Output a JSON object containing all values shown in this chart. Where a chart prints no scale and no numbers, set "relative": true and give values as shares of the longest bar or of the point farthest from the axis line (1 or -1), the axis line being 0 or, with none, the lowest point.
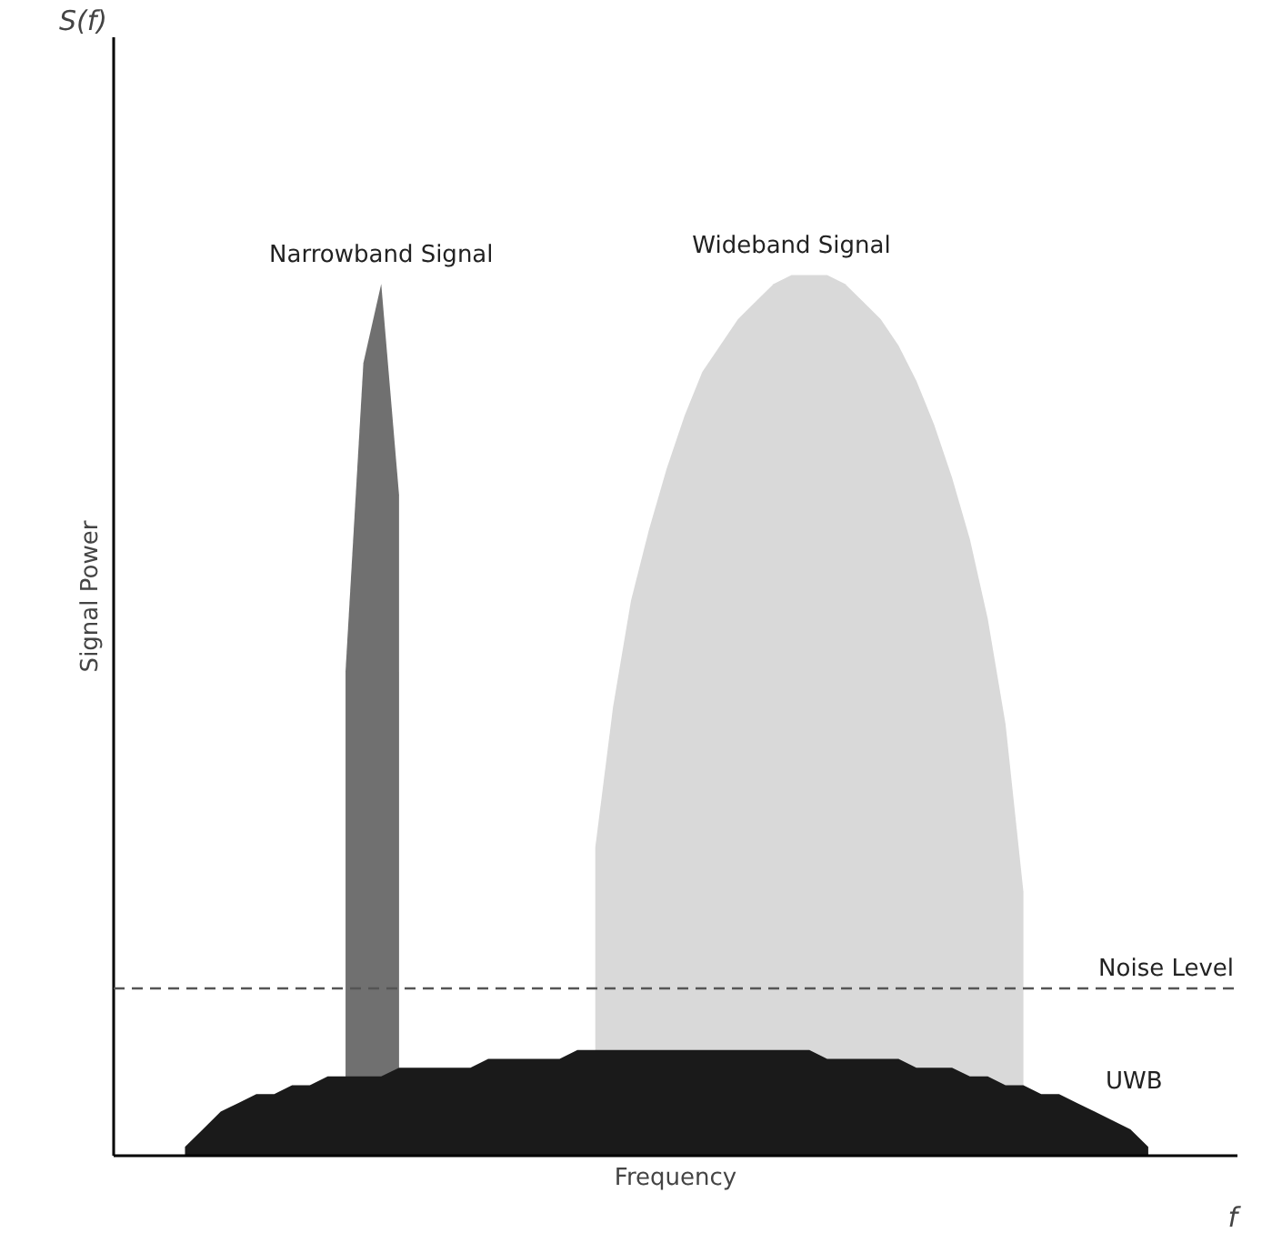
{
  "chart_data": {
    "type": "area",
    "relative": true,
    "xlabel": "Frequency",
    "ylabel": "Signal Power",
    "annotations": [
      "S(f)",
      "f"
    ],
    "categories": [
      null,
      null,
      null,
      null,
      null,
      null,
      null,
      null,
      null,
      null,
      null,
      null,
      null,
      null,
      null,
      null,
      null,
      null,
      null,
      null,
      null,
      null,
      null,
      null,
      null,
      null,
      null,
      null,
      null,
      null,
      null,
      null,
      null,
      null,
      null,
      null,
      null,
      null,
      null,
      null,
      null,
      null,
      null,
      null,
      null,
      null,
      null,
      null,
      null,
      null,
      null,
      null,
      null,
      null,
      null,
      null,
      null,
      null,
      null,
      null,
      null,
      null,
      null
    ],
    "series": [
      {
        "name": "Wideband Signal",
        "color": "#d9d9d9",
        "values": [
          null,
          null,
          null,
          null,
          null,
          null,
          null,
          null,
          null,
          null,
          null,
          null,
          null,
          null,
          null,
          null,
          null,
          null,
          null,
          null,
          null,
          null,
          null,
          null,
          null,
          null,
          null,
          0.35,
          0.51,
          0.63,
          0.71,
          0.78,
          0.84,
          0.89,
          0.92,
          0.95,
          0.97,
          0.99,
          1.0,
          1.0,
          1.0,
          0.99,
          0.97,
          0.95,
          0.92,
          0.88,
          0.83,
          0.77,
          0.7,
          0.61,
          0.49,
          0.3,
          null,
          null,
          null,
          null,
          null,
          null,
          null,
          null,
          null,
          null,
          null
        ]
      },
      {
        "name": "Narrowband Signal",
        "color": "#707070",
        "values": [
          null,
          null,
          null,
          null,
          null,
          null,
          null,
          null,
          null,
          null,
          null,
          null,
          null,
          0.55,
          0.9,
          0.99,
          0.75,
          null,
          null,
          null,
          null,
          null,
          null,
          null,
          null,
          null,
          null,
          null,
          null,
          null,
          null,
          null,
          null,
          null,
          null,
          null,
          null,
          null,
          null,
          null,
          null,
          null,
          null,
          null,
          null,
          null,
          null,
          null,
          null,
          null,
          null,
          null,
          null,
          null,
          null,
          null,
          null,
          null,
          null,
          null,
          null,
          null,
          null
        ]
      },
      {
        "name": "UWB",
        "color": "#1a1a1a",
        "values": [
          null,
          null,
          null,
          null,
          0.01,
          0.03,
          0.05,
          0.06,
          0.07,
          0.07,
          0.08,
          0.08,
          0.09,
          0.09,
          0.09,
          0.09,
          0.1,
          0.1,
          0.1,
          0.1,
          0.1,
          0.11,
          0.11,
          0.11,
          0.11,
          0.11,
          0.12,
          0.12,
          0.12,
          0.12,
          0.12,
          0.12,
          0.12,
          0.12,
          0.12,
          0.12,
          0.12,
          0.12,
          0.12,
          0.12,
          0.11,
          0.11,
          0.11,
          0.11,
          0.11,
          0.1,
          0.1,
          0.1,
          0.09,
          0.09,
          0.08,
          0.08,
          0.07,
          0.07,
          0.06,
          0.05,
          0.04,
          0.03,
          0.01,
          null,
          null,
          null,
          null
        ]
      }
    ],
    "ref_lines": [
      {
        "axis": "y",
        "value": 0.19,
        "label": "Noise Level",
        "color": "#555555",
        "line_style": "dashed"
      }
    ]
  }
}
